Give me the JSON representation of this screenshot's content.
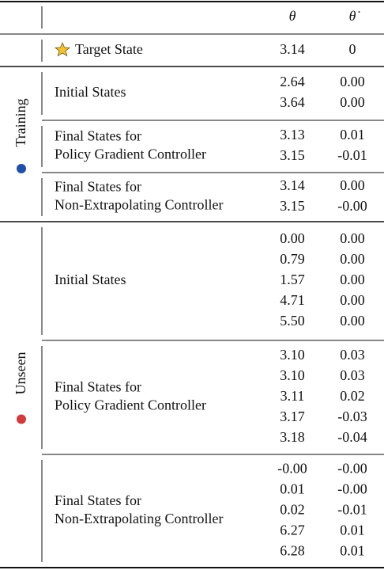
{
  "header": {
    "columns": [
      "θ",
      "θ̇"
    ]
  },
  "target": {
    "label": "Target State",
    "values": [
      "3.14",
      "0"
    ]
  },
  "groups": [
    {
      "name": "Training",
      "sections": [
        {
          "label": [
            "Initial States"
          ],
          "rows": [
            [
              "2.64",
              "0.00"
            ],
            [
              "3.64",
              "0.00"
            ]
          ]
        },
        {
          "label": [
            "Final States for",
            "Policy Gradient Controller"
          ],
          "rows": [
            [
              "3.13",
              "0.01"
            ],
            [
              "3.15",
              "-0.01"
            ]
          ]
        },
        {
          "label": [
            "Final States for",
            "Non-Extrapolating Controller"
          ],
          "rows": [
            [
              "3.14",
              "0.00"
            ],
            [
              "3.15",
              "-0.00"
            ]
          ]
        }
      ]
    },
    {
      "name": "Unseen",
      "sections": [
        {
          "label": [
            "Initial States"
          ],
          "rows": [
            [
              "0.00",
              "0.00"
            ],
            [
              "0.79",
              "0.00"
            ],
            [
              "1.57",
              "0.00"
            ],
            [
              "4.71",
              "0.00"
            ],
            [
              "5.50",
              "0.00"
            ]
          ]
        },
        {
          "label": [
            "Final States for",
            "Policy Gradient Controller"
          ],
          "rows": [
            [
              "3.10",
              "0.03"
            ],
            [
              "3.10",
              "0.03"
            ],
            [
              "3.11",
              "0.02"
            ],
            [
              "3.17",
              "-0.03"
            ],
            [
              "3.18",
              "-0.04"
            ]
          ]
        },
        {
          "label": [
            "Final States for",
            "Non-Extrapolating Controller"
          ],
          "rows": [
            [
              "-0.00",
              "-0.00"
            ],
            [
              "0.01",
              "-0.00"
            ],
            [
              "0.02",
              "-0.01"
            ],
            [
              "6.27",
              "0.01"
            ],
            [
              "6.28",
              "0.01"
            ]
          ]
        }
      ]
    }
  ]
}
